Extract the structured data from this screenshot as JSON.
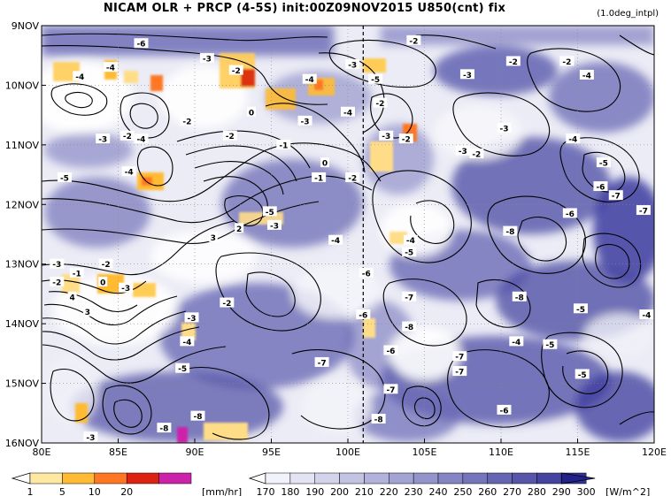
{
  "chart_data": {
    "type": "heatmap",
    "title": "NICAM  OLR + PRCP (4-5S) init:00Z09NOV2015 U850(cnt) fix",
    "note": "(1.0deg_intpl)",
    "x_tick_labels": [
      "80E",
      "85E",
      "90E",
      "95E",
      "100E",
      "105E",
      "110E",
      "115E",
      "120E"
    ],
    "x_ticks": [
      80,
      85,
      90,
      95,
      100,
      105,
      110,
      115,
      120
    ],
    "xlim": [
      80,
      120
    ],
    "y_tick_labels": [
      "9NOV",
      "10NOV",
      "11NOV",
      "12NOV",
      "13NOV",
      "14NOV",
      "15NOV",
      "16NOV"
    ],
    "y_ticks": [
      9,
      10,
      11,
      12,
      13,
      14,
      15,
      16
    ],
    "ylim": [
      9,
      16
    ],
    "reference_line_x": 101,
    "olr_colorbar": {
      "labels": [
        "170",
        "180",
        "190",
        "200",
        "210",
        "220",
        "230",
        "240",
        "250",
        "260",
        "270",
        "280",
        "290",
        "300"
      ],
      "units": "[W/m^2]",
      "colors": [
        "#ffffff",
        "#f2f2fa",
        "#e3e3f3",
        "#d3d3ec",
        "#c3c3e4",
        "#b2b2dc",
        "#a3a3d4",
        "#9494cc",
        "#8585c4",
        "#7575bc",
        "#6565b3",
        "#5555aa",
        "#4444a0",
        "#333396",
        "#22228a"
      ]
    },
    "prcp_colorbar": {
      "labels": [
        "1",
        "5",
        "10",
        "20"
      ],
      "units": "[mm/hr]",
      "colors": [
        "#ffffff",
        "#ffe8a0",
        "#ffbb33",
        "#ff7722",
        "#dd2211",
        "#cc22aa"
      ]
    },
    "contour_labels": [
      {
        "x": 86.5,
        "y": 9.3,
        "text": "-6"
      },
      {
        "x": 82.5,
        "y": 9.85,
        "text": "-4"
      },
      {
        "x": 84.5,
        "y": 9.7,
        "text": "-4"
      },
      {
        "x": 90.8,
        "y": 9.55,
        "text": "-3"
      },
      {
        "x": 92.7,
        "y": 9.75,
        "text": "-2"
      },
      {
        "x": 97.5,
        "y": 9.9,
        "text": "-4"
      },
      {
        "x": 100.3,
        "y": 9.65,
        "text": "-3"
      },
      {
        "x": 101.8,
        "y": 9.9,
        "text": "-5"
      },
      {
        "x": 104.3,
        "y": 9.25,
        "text": "-2"
      },
      {
        "x": 107.8,
        "y": 9.82,
        "text": "-3"
      },
      {
        "x": 110.8,
        "y": 9.6,
        "text": "-2"
      },
      {
        "x": 114.3,
        "y": 9.6,
        "text": "-2"
      },
      {
        "x": 115.6,
        "y": 9.83,
        "text": "-4"
      },
      {
        "x": 89.5,
        "y": 10.6,
        "text": "-2"
      },
      {
        "x": 93.7,
        "y": 10.45,
        "text": "0"
      },
      {
        "x": 97.2,
        "y": 10.6,
        "text": "-3"
      },
      {
        "x": 100,
        "y": 10.45,
        "text": "-4"
      },
      {
        "x": 102.1,
        "y": 10.3,
        "text": "-2"
      },
      {
        "x": 84,
        "y": 10.9,
        "text": "-3"
      },
      {
        "x": 85.6,
        "y": 10.85,
        "text": "-2"
      },
      {
        "x": 86.5,
        "y": 10.9,
        "text": "-4"
      },
      {
        "x": 92.3,
        "y": 10.85,
        "text": "-2"
      },
      {
        "x": 95.8,
        "y": 11.0,
        "text": "-1"
      },
      {
        "x": 102.5,
        "y": 10.85,
        "text": "-3"
      },
      {
        "x": 103.8,
        "y": 10.9,
        "text": "-2"
      },
      {
        "x": 110.2,
        "y": 10.72,
        "text": "-3"
      },
      {
        "x": 114.7,
        "y": 10.9,
        "text": "-4"
      },
      {
        "x": 107.5,
        "y": 11.1,
        "text": "-3"
      },
      {
        "x": 108.4,
        "y": 11.15,
        "text": "-2"
      },
      {
        "x": 85.7,
        "y": 11.45,
        "text": "-4"
      },
      {
        "x": 81.5,
        "y": 11.55,
        "text": "-5"
      },
      {
        "x": 98.5,
        "y": 11.3,
        "text": "0"
      },
      {
        "x": 98.1,
        "y": 11.55,
        "text": "-1"
      },
      {
        "x": 100.3,
        "y": 11.55,
        "text": "-2"
      },
      {
        "x": 116.7,
        "y": 11.3,
        "text": "-5"
      },
      {
        "x": 116.5,
        "y": 11.7,
        "text": "-6"
      },
      {
        "x": 117.5,
        "y": 11.85,
        "text": "-7"
      },
      {
        "x": 94.9,
        "y": 12.12,
        "text": "-5"
      },
      {
        "x": 95.2,
        "y": 12.35,
        "text": "-3"
      },
      {
        "x": 114.5,
        "y": 12.15,
        "text": "-6"
      },
      {
        "x": 119.3,
        "y": 12.1,
        "text": "-7"
      },
      {
        "x": 92.9,
        "y": 12.4,
        "text": "2"
      },
      {
        "x": 110.6,
        "y": 12.45,
        "text": "-8"
      },
      {
        "x": 91.2,
        "y": 12.55,
        "text": "3"
      },
      {
        "x": 99.2,
        "y": 12.6,
        "text": "-4"
      },
      {
        "x": 104.1,
        "y": 12.6,
        "text": "-4"
      },
      {
        "x": 104.0,
        "y": 12.8,
        "text": "-5"
      },
      {
        "x": 81.0,
        "y": 13.0,
        "text": "-3"
      },
      {
        "x": 82.3,
        "y": 13.15,
        "text": "-1"
      },
      {
        "x": 84.2,
        "y": 13.0,
        "text": "-2"
      },
      {
        "x": 81.0,
        "y": 13.3,
        "text": "-2"
      },
      {
        "x": 84.0,
        "y": 13.3,
        "text": "0"
      },
      {
        "x": 82.0,
        "y": 13.55,
        "text": "4"
      },
      {
        "x": 83.0,
        "y": 13.8,
        "text": "3"
      },
      {
        "x": 85.5,
        "y": 13.4,
        "text": "-3"
      },
      {
        "x": 101.2,
        "y": 13.15,
        "text": "-6"
      },
      {
        "x": 104.0,
        "y": 13.55,
        "text": "-7"
      },
      {
        "x": 111.2,
        "y": 13.55,
        "text": "-8"
      },
      {
        "x": 115.2,
        "y": 13.75,
        "text": "-5"
      },
      {
        "x": 119.5,
        "y": 13.85,
        "text": "-4"
      },
      {
        "x": 92.1,
        "y": 13.65,
        "text": "-2"
      },
      {
        "x": 89.8,
        "y": 13.9,
        "text": "-3"
      },
      {
        "x": 101.0,
        "y": 13.85,
        "text": "-6"
      },
      {
        "x": 104.0,
        "y": 14.05,
        "text": "-8"
      },
      {
        "x": 89.5,
        "y": 14.3,
        "text": "-4"
      },
      {
        "x": 111.0,
        "y": 14.3,
        "text": "-4"
      },
      {
        "x": 113.2,
        "y": 14.35,
        "text": "-5"
      },
      {
        "x": 102.8,
        "y": 14.45,
        "text": "-6"
      },
      {
        "x": 107.3,
        "y": 14.55,
        "text": "-7"
      },
      {
        "x": 89.2,
        "y": 14.75,
        "text": "-5"
      },
      {
        "x": 98.3,
        "y": 14.65,
        "text": "-7"
      },
      {
        "x": 107.3,
        "y": 14.8,
        "text": "-7"
      },
      {
        "x": 115.3,
        "y": 14.85,
        "text": "-5"
      },
      {
        "x": 102.8,
        "y": 15.1,
        "text": "-7"
      },
      {
        "x": 90.2,
        "y": 15.55,
        "text": "-8"
      },
      {
        "x": 110.2,
        "y": 15.45,
        "text": "-6"
      },
      {
        "x": 102.0,
        "y": 15.6,
        "text": "-8"
      },
      {
        "x": 83.2,
        "y": 15.9,
        "text": "-3"
      },
      {
        "x": 88.0,
        "y": 15.75,
        "text": "-8"
      }
    ]
  }
}
